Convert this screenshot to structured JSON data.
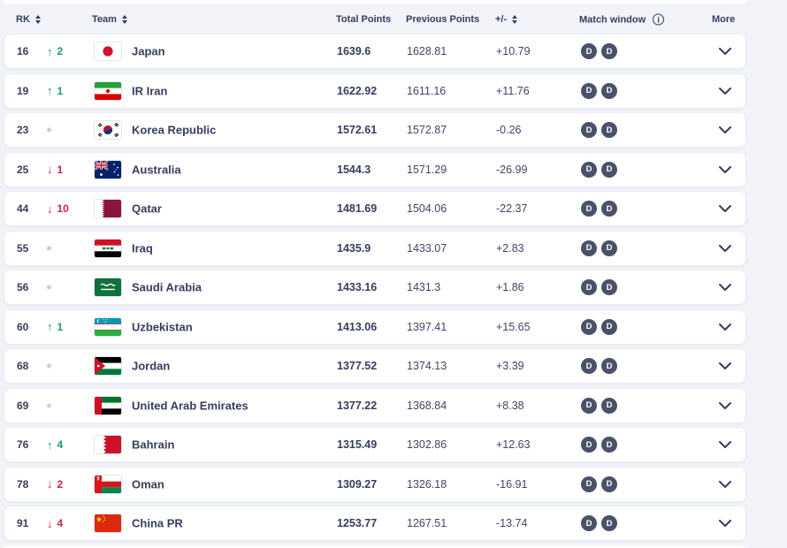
{
  "colors": {
    "page_background": "#f1f3f9",
    "card_background": "#ffffff",
    "text_navy": "#363d5e",
    "positive_green": "#18a05a",
    "negative_red": "#d0243e",
    "no_change_dot": "#c9cedb",
    "match_badge": "#4a5168"
  },
  "icons": {
    "up_arrow": "↑",
    "down_arrow": "↓",
    "info_glyph": "i"
  },
  "table": {
    "columns": {
      "rank": "RK",
      "team": "Team",
      "total_points": "Total Points",
      "previous_points": "Previous Points",
      "plus_minus": "+/-",
      "match_window": "Match window",
      "more": "More"
    },
    "rows": [
      {
        "rank": "16",
        "change_dir": "up",
        "change_value": "2",
        "team": "Japan",
        "flag": "japan",
        "total_points": "1639.6",
        "previous_points": "1628.81",
        "diff": "+10.79",
        "match_window": [
          "D",
          "D"
        ]
      },
      {
        "rank": "19",
        "change_dir": "up",
        "change_value": "1",
        "team": "IR Iran",
        "flag": "iran",
        "total_points": "1622.92",
        "previous_points": "1611.16",
        "diff": "+11.76",
        "match_window": [
          "D",
          "D"
        ]
      },
      {
        "rank": "23",
        "change_dir": "none",
        "change_value": "",
        "team": "Korea Republic",
        "flag": "korea",
        "total_points": "1572.61",
        "previous_points": "1572.87",
        "diff": "-0.26",
        "match_window": [
          "D",
          "D"
        ]
      },
      {
        "rank": "25",
        "change_dir": "down",
        "change_value": "1",
        "team": "Australia",
        "flag": "australia",
        "total_points": "1544.3",
        "previous_points": "1571.29",
        "diff": "-26.99",
        "match_window": [
          "D",
          "D"
        ]
      },
      {
        "rank": "44",
        "change_dir": "down",
        "change_value": "10",
        "team": "Qatar",
        "flag": "qatar",
        "total_points": "1481.69",
        "previous_points": "1504.06",
        "diff": "-22.37",
        "match_window": [
          "D",
          "D"
        ]
      },
      {
        "rank": "55",
        "change_dir": "none",
        "change_value": "",
        "team": "Iraq",
        "flag": "iraq",
        "total_points": "1435.9",
        "previous_points": "1433.07",
        "diff": "+2.83",
        "match_window": [
          "D",
          "D"
        ]
      },
      {
        "rank": "56",
        "change_dir": "none",
        "change_value": "",
        "team": "Saudi Arabia",
        "flag": "saudi_arabia",
        "total_points": "1433.16",
        "previous_points": "1431.3",
        "diff": "+1.86",
        "match_window": [
          "D",
          "D"
        ]
      },
      {
        "rank": "60",
        "change_dir": "up",
        "change_value": "1",
        "team": "Uzbekistan",
        "flag": "uzbekistan",
        "total_points": "1413.06",
        "previous_points": "1397.41",
        "diff": "+15.65",
        "match_window": [
          "D",
          "D"
        ]
      },
      {
        "rank": "68",
        "change_dir": "none",
        "change_value": "",
        "team": "Jordan",
        "flag": "jordan",
        "total_points": "1377.52",
        "previous_points": "1374.13",
        "diff": "+3.39",
        "match_window": [
          "D",
          "D"
        ]
      },
      {
        "rank": "69",
        "change_dir": "none",
        "change_value": "",
        "team": "United Arab Emirates",
        "flag": "uae",
        "total_points": "1377.22",
        "previous_points": "1368.84",
        "diff": "+8.38",
        "match_window": [
          "D",
          "D"
        ]
      },
      {
        "rank": "76",
        "change_dir": "up",
        "change_value": "4",
        "team": "Bahrain",
        "flag": "bahrain",
        "total_points": "1315.49",
        "previous_points": "1302.86",
        "diff": "+12.63",
        "match_window": [
          "D",
          "D"
        ]
      },
      {
        "rank": "78",
        "change_dir": "down",
        "change_value": "2",
        "team": "Oman",
        "flag": "oman",
        "total_points": "1309.27",
        "previous_points": "1326.18",
        "diff": "-16.91",
        "match_window": [
          "D",
          "D"
        ]
      },
      {
        "rank": "91",
        "change_dir": "down",
        "change_value": "4",
        "team": "China PR",
        "flag": "china",
        "total_points": "1253.77",
        "previous_points": "1267.51",
        "diff": "-13.74",
        "match_window": [
          "D",
          "D"
        ]
      }
    ]
  }
}
